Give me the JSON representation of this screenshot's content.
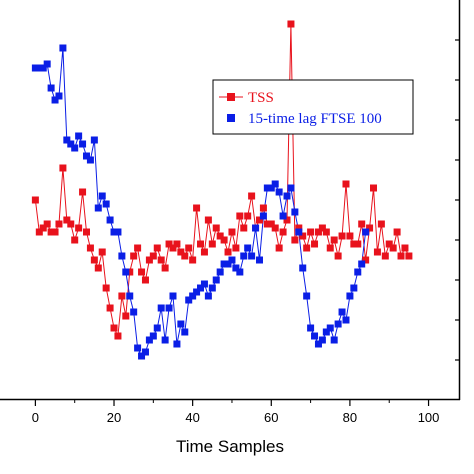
{
  "chart_data": {
    "type": "line",
    "xlabel": "Time Samples",
    "ylabel": "",
    "xlim": [
      -9,
      108
    ],
    "ylim": [
      0,
      10
    ],
    "x_ticks": [
      "0",
      "20",
      "40",
      "60",
      "80",
      "100"
    ],
    "x_tick_values": [
      0,
      20,
      40,
      60,
      80,
      100
    ],
    "y_tick_values": [
      1,
      2,
      3,
      4,
      5,
      6,
      7,
      8,
      9
    ],
    "grid": false,
    "legend_position": "top-right",
    "series": [
      {
        "name": "TSS",
        "color": "#e8121c",
        "marker": "square",
        "x": [
          0,
          1,
          2,
          3,
          4,
          5,
          6,
          7,
          8,
          9,
          10,
          11,
          12,
          13,
          14,
          15,
          16,
          17,
          18,
          19,
          20,
          21,
          22,
          23,
          24,
          25,
          26,
          27,
          28,
          29,
          30,
          31,
          32,
          33,
          34,
          35,
          36,
          37,
          38,
          39,
          40,
          41,
          42,
          43,
          44,
          45,
          46,
          47,
          48,
          49,
          50,
          51,
          52,
          53,
          54,
          55,
          56,
          57,
          58,
          59,
          60,
          61,
          62,
          63,
          64,
          65,
          66,
          67,
          68,
          69,
          70,
          71,
          72,
          73,
          74,
          75,
          76,
          77,
          78,
          79,
          80,
          81,
          82,
          83,
          84,
          85,
          86,
          87,
          88,
          89,
          90,
          91,
          92,
          93,
          94,
          95
        ],
        "values": [
          5.0,
          4.2,
          4.3,
          4.4,
          4.2,
          4.2,
          4.4,
          5.8,
          4.5,
          4.4,
          4.0,
          4.3,
          5.2,
          4.2,
          3.8,
          3.5,
          3.3,
          3.7,
          2.8,
          2.3,
          1.8,
          1.6,
          2.6,
          2.1,
          3.2,
          3.6,
          3.8,
          3.2,
          3.0,
          3.5,
          3.6,
          3.8,
          3.5,
          3.3,
          3.9,
          3.8,
          3.9,
          3.7,
          3.6,
          3.8,
          3.5,
          4.8,
          3.9,
          3.7,
          4.5,
          3.9,
          4.3,
          4.1,
          4.0,
          3.7,
          4.2,
          3.8,
          4.6,
          4.3,
          4.6,
          5.1,
          4.3,
          4.5,
          4.8,
          4.4,
          4.4,
          4.3,
          3.8,
          4.2,
          4.5,
          9.4,
          4.0,
          4.3,
          4.1,
          3.8,
          4.2,
          3.9,
          4.2,
          4.3,
          4.2,
          3.8,
          4.0,
          3.6,
          4.1,
          5.4,
          4.1,
          3.9,
          3.9,
          4.4,
          3.5,
          4.3,
          5.3,
          3.7,
          4.4,
          3.6,
          3.9,
          3.8,
          4.2,
          3.6,
          3.8,
          3.6
        ]
      },
      {
        "name": "15-time lag FTSE 100",
        "color": "#0a1ee6",
        "marker": "square",
        "x": [
          0,
          1,
          2,
          3,
          4,
          5,
          6,
          7,
          8,
          9,
          10,
          11,
          12,
          13,
          14,
          15,
          16,
          17,
          18,
          19,
          20,
          21,
          22,
          23,
          24,
          25,
          26,
          27,
          28,
          29,
          30,
          31,
          32,
          33,
          34,
          35,
          36,
          37,
          38,
          39,
          40,
          41,
          42,
          43,
          44,
          45,
          46,
          47,
          48,
          49,
          50,
          51,
          52,
          53,
          54,
          55,
          56,
          57,
          58,
          59,
          60,
          61,
          62,
          63,
          64,
          65,
          66,
          67,
          68,
          69,
          70,
          71,
          72,
          73,
          74,
          75,
          76,
          77,
          78,
          79,
          80,
          81,
          82,
          83,
          84
        ],
        "values": [
          8.3,
          8.3,
          8.3,
          8.4,
          7.8,
          7.5,
          7.6,
          8.8,
          6.5,
          6.4,
          6.3,
          6.6,
          6.4,
          6.1,
          6.0,
          6.5,
          4.8,
          5.1,
          4.9,
          4.5,
          4.2,
          4.2,
          3.6,
          3.2,
          2.6,
          2.2,
          1.3,
          1.1,
          1.2,
          1.5,
          1.6,
          1.8,
          2.3,
          1.5,
          2.3,
          2.6,
          1.4,
          1.9,
          1.7,
          2.5,
          2.6,
          2.7,
          2.8,
          2.9,
          2.6,
          2.8,
          3.0,
          3.2,
          3.4,
          3.4,
          3.5,
          3.3,
          3.2,
          3.6,
          3.8,
          3.6,
          4.3,
          3.5,
          4.6,
          5.3,
          5.3,
          5.4,
          5.2,
          4.6,
          5.1,
          5.3,
          4.7,
          4.2,
          3.3,
          2.6,
          1.8,
          1.6,
          1.4,
          1.5,
          1.7,
          1.8,
          1.5,
          1.9,
          2.2,
          2.0,
          2.6,
          2.8,
          3.2,
          3.4,
          4.2
        ]
      }
    ]
  }
}
